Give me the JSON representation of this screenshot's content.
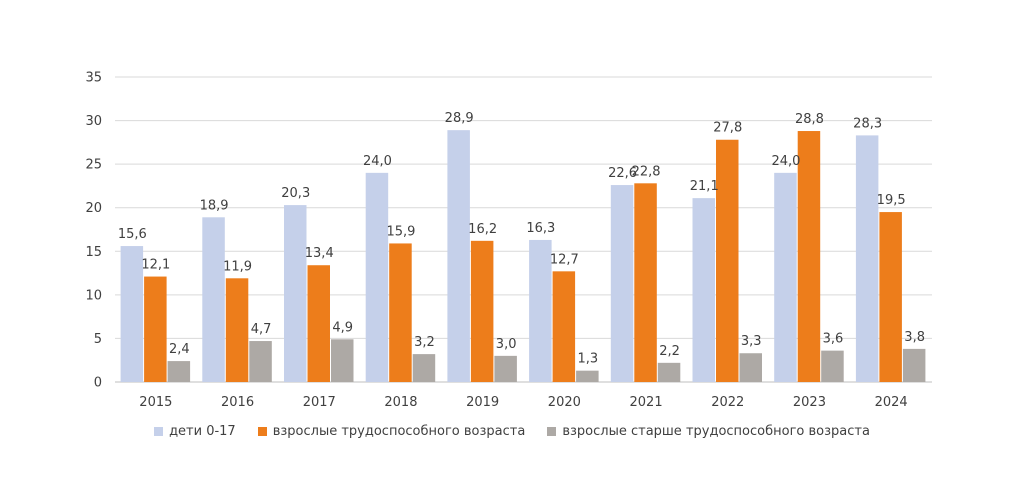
{
  "chart_data": {
    "type": "bar",
    "categories": [
      "2015",
      "2016",
      "2017",
      "2018",
      "2019",
      "2020",
      "2021",
      "2022",
      "2023",
      "2024"
    ],
    "series": [
      {
        "name": "дети 0-17",
        "color": "#C5D0EA",
        "values": [
          15.6,
          18.9,
          20.3,
          24.0,
          28.9,
          16.3,
          22.6,
          21.1,
          24.0,
          28.3
        ],
        "labels": [
          "15,6",
          "18,9",
          "20,3",
          "24,0",
          "28,9",
          "16,3",
          "22,6",
          "21,1",
          "24,0",
          "28,3"
        ]
      },
      {
        "name": "взрослые трудоспособного возраста",
        "color": "#ED7D1B",
        "values": [
          12.1,
          11.9,
          13.4,
          15.9,
          16.2,
          12.7,
          22.8,
          27.8,
          28.8,
          19.5
        ],
        "labels": [
          "12,1",
          "11,9",
          "13,4",
          "15,9",
          "16,2",
          "12,7",
          "22,8",
          "27,8",
          "28,8",
          "19,5"
        ]
      },
      {
        "name": "взрослые старше трудоспособного возраста",
        "color": "#ADA9A5",
        "values": [
          2.4,
          4.7,
          4.9,
          3.2,
          3.0,
          1.3,
          2.2,
          3.3,
          3.6,
          3.8
        ],
        "labels": [
          "2,4",
          "4,7",
          "4,9",
          "3,2",
          "3,0",
          "1,3",
          "2,2",
          "3,3",
          "3,6",
          "3,8"
        ]
      }
    ],
    "yticks": [
      "0",
      "5",
      "10",
      "15",
      "20",
      "25",
      "30",
      "35"
    ],
    "ylim": [
      0,
      35
    ],
    "grid": true,
    "legend_position": "bottom"
  }
}
